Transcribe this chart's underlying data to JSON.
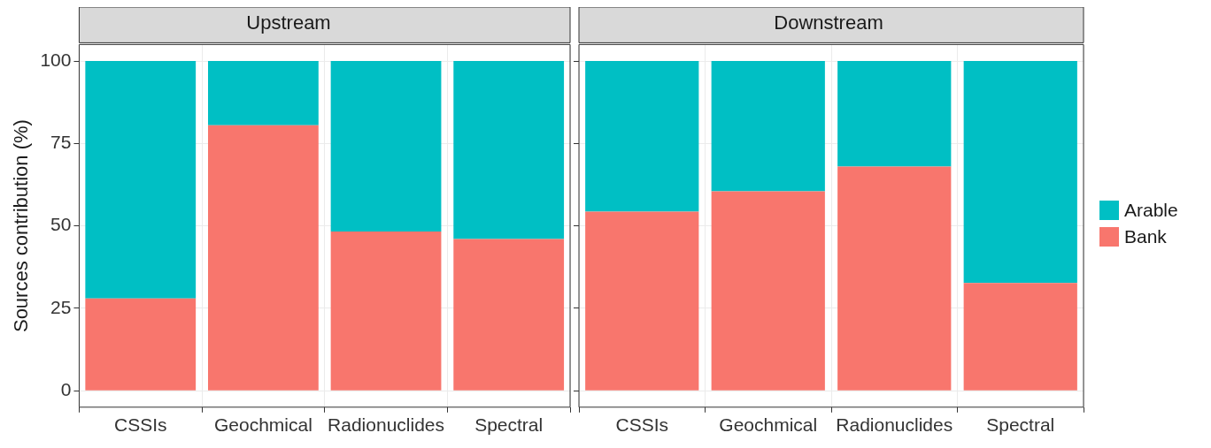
{
  "chart_data": [
    {
      "type": "bar",
      "title": "Upstream",
      "ylabel": "Sources contribution (%)",
      "categories": [
        "CSSIs",
        "Geochmical",
        "Radionuclides",
        "Spectral"
      ],
      "stacked": true,
      "ylim": [
        -5,
        105
      ],
      "yticks": [
        0,
        25,
        50,
        75,
        100
      ],
      "grid": true,
      "legend": false,
      "series": [
        {
          "color": "#f8766d",
          "values": [
            28,
            80.5,
            48.3,
            46
          ]
        },
        {
          "color": "#00bfc4",
          "values": [
            72,
            19.5,
            51.7,
            54
          ]
        }
      ]
    },
    {
      "type": "bar",
      "title": "Downstream",
      "categories": [
        "CSSIs",
        "Geochmical",
        "Radionuclides",
        "Spectral"
      ],
      "stacked": true,
      "ylim": [
        -5,
        105
      ],
      "yticks": [
        0,
        25,
        50,
        75,
        100
      ],
      "grid": true,
      "legend": "right",
      "tick_labels": "x",
      "series": [
        {
          "name": "Bank",
          "color": "#f8766d",
          "values": [
            54.3,
            60.5,
            68,
            32.7
          ]
        },
        {
          "name": "Arable",
          "color": "#00bfc4",
          "values": [
            45.7,
            39.5,
            32,
            67.3
          ]
        }
      ]
    }
  ]
}
